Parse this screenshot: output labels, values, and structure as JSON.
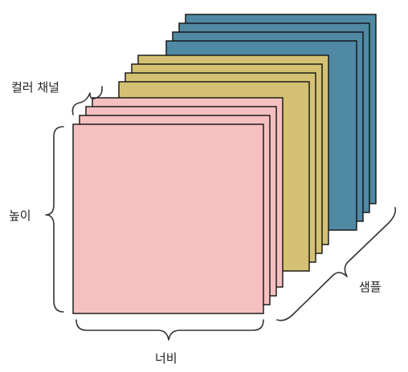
{
  "labels": {
    "color_channel": "컬러 채널",
    "height": "높이",
    "width": "너비",
    "samples": "샘플"
  },
  "colors": {
    "blue": "#5089a4",
    "yellow": "#d4c173",
    "pink": "#f6c0c0",
    "stroke": "#111111",
    "brace": "#333333"
  },
  "layers_per_stack": 4
}
